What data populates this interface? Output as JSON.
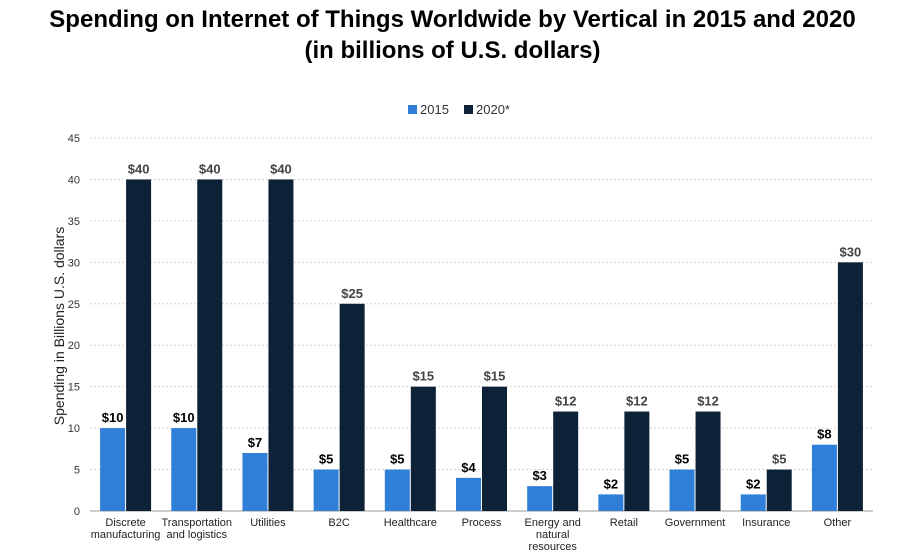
{
  "chart_data": {
    "type": "bar",
    "title": "Spending on Internet of Things Worldwide by Vertical in 2015 and 2020",
    "subtitle": "(in billions of U.S. dollars)",
    "xlabel": "",
    "ylabel": "Spending in Billions U.S. dollars",
    "ylim": [
      0,
      45
    ],
    "yticks": [
      0,
      5,
      10,
      15,
      20,
      25,
      30,
      35,
      40,
      45
    ],
    "grid": true,
    "legend_position": "top-center",
    "categories": [
      "Discrete manufacturing",
      "Transportation and logistics",
      "Utilities",
      "B2C",
      "Healthcare",
      "Process",
      "Energy and natural resources",
      "Retail",
      "Government",
      "Insurance",
      "Other"
    ],
    "series": [
      {
        "name": "2015",
        "color": "#2f7ed8",
        "values": [
          10,
          10,
          7,
          5,
          5,
          4,
          3,
          2,
          5,
          2,
          8
        ],
        "labels": [
          "$10",
          "$10",
          "$7",
          "$5",
          "$5",
          "$4",
          "$3",
          "$2",
          "$5",
          "$2",
          "$8"
        ]
      },
      {
        "name": "2020*",
        "color": "#0d2236",
        "values": [
          40,
          40,
          40,
          25,
          15,
          15,
          12,
          12,
          12,
          5,
          30
        ],
        "labels": [
          "$40",
          "$40",
          "$40",
          "$25",
          "$15",
          "$15",
          "$12",
          "$12",
          "$12",
          "$5",
          "$30"
        ]
      }
    ]
  }
}
